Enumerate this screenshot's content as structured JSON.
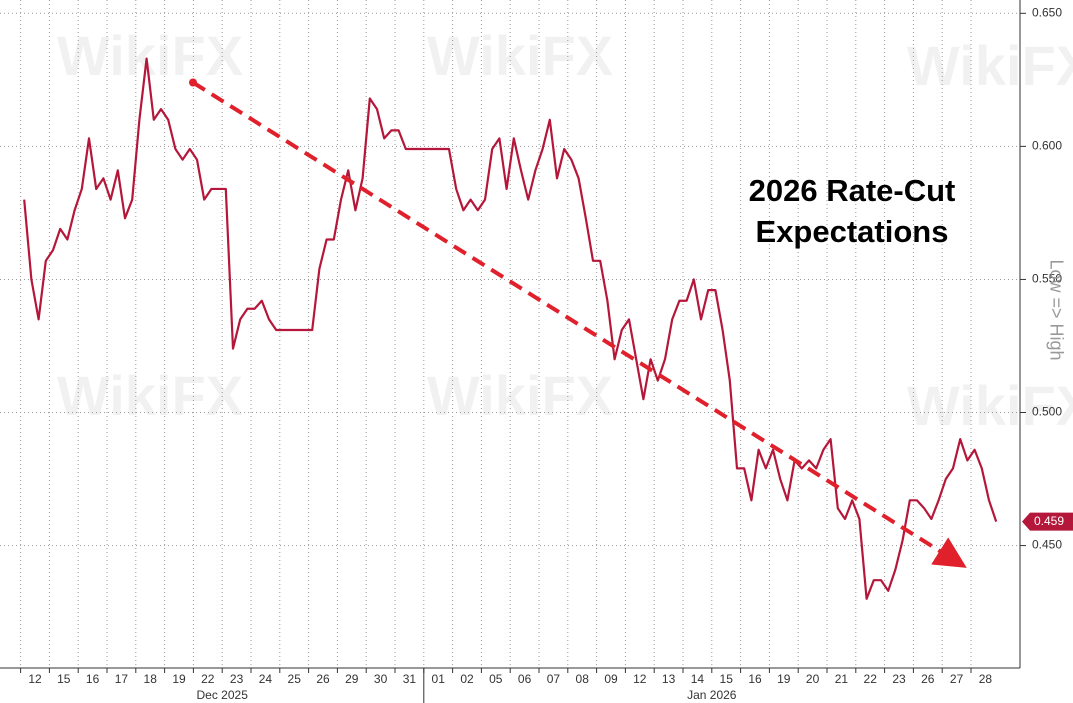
{
  "chart_data": {
    "type": "line",
    "annotation": [
      "2026 Rate-Cut",
      "Expectations"
    ],
    "y_label": "Low => High",
    "watermark": "WikiFX",
    "x_groups": [
      {
        "label": "Dec 2025",
        "categories": [
          "12",
          "15",
          "16",
          "17",
          "18",
          "19",
          "22",
          "23",
          "24",
          "25",
          "26",
          "29",
          "30",
          "31"
        ]
      },
      {
        "label": "Jan 2026",
        "categories": [
          "01",
          "02",
          "05",
          "06",
          "07",
          "08",
          "09",
          "12",
          "13",
          "14",
          "15",
          "16",
          "19",
          "20",
          "21",
          "22",
          "23",
          "26",
          "27",
          "28"
        ]
      }
    ],
    "series": [
      {
        "color": "#b5173a",
        "values": [
          [
            0.58,
            0.55,
            0.535,
            0.557
          ],
          [
            0.561,
            0.569,
            0.565,
            0.576
          ],
          [
            0.584,
            0.603,
            0.584,
            0.588
          ],
          [
            0.58,
            0.591,
            0.573,
            0.58
          ],
          [
            0.61,
            0.633,
            0.61,
            0.614
          ],
          [
            0.61,
            0.599,
            0.595,
            0.599
          ],
          [
            0.595,
            0.58,
            0.584,
            0.584
          ],
          [
            0.584,
            0.524,
            0.535,
            0.539
          ],
          [
            0.539,
            0.542,
            0.535,
            0.531
          ],
          [
            0.531,
            0.531,
            0.531,
            0.531
          ],
          [
            0.531,
            0.554,
            0.565,
            0.565
          ],
          [
            0.58,
            0.591,
            0.576,
            0.588
          ],
          [
            0.618,
            0.614,
            0.603,
            0.606
          ],
          [
            0.606,
            0.599,
            0.599,
            0.599
          ],
          [
            0.599,
            0.599,
            0.599,
            0.599
          ],
          [
            0.584,
            0.576,
            0.58,
            0.576
          ],
          [
            0.58,
            0.599,
            0.603,
            0.584
          ],
          [
            0.603,
            0.591,
            0.58,
            0.591
          ],
          [
            0.599,
            0.61,
            0.588,
            0.599
          ],
          [
            0.595,
            0.588,
            0.573,
            0.557
          ],
          [
            0.557,
            0.542,
            0.52,
            0.531
          ],
          [
            0.535,
            0.52,
            0.505,
            0.52
          ],
          [
            0.512,
            0.52,
            0.535,
            0.542
          ],
          [
            0.542,
            0.55,
            0.535,
            0.546
          ],
          [
            0.546,
            0.531,
            0.512,
            0.479
          ],
          [
            0.479,
            0.467,
            0.486,
            0.479
          ],
          [
            0.486,
            0.475,
            0.467,
            0.482
          ],
          [
            0.479,
            0.482,
            0.479,
            0.486
          ],
          [
            0.49,
            0.464,
            0.46,
            0.467
          ],
          [
            0.46,
            0.43,
            0.437,
            0.437
          ],
          [
            0.433,
            0.441,
            0.452,
            0.467
          ],
          [
            0.467,
            0.464,
            0.46,
            0.467
          ],
          [
            0.475,
            0.479,
            0.49,
            0.482
          ],
          [
            0.486,
            0.479,
            0.467,
            0.459
          ]
        ]
      }
    ],
    "trend": {
      "start": {
        "x": "19",
        "y": 0.624
      },
      "end": {
        "x": "27",
        "y": 0.444
      },
      "color": "#e0202a"
    },
    "last_value": 0.459,
    "ylim": [
      0.404,
      0.655
    ],
    "yticks": [
      {
        "value": 0.65,
        "label": "0.650"
      },
      {
        "value": 0.6,
        "label": "0.600"
      },
      {
        "value": 0.55,
        "label": "0.550"
      },
      {
        "value": 0.5,
        "label": "0.500"
      },
      {
        "value": 0.45,
        "label": "0.450"
      }
    ],
    "grid": true
  }
}
